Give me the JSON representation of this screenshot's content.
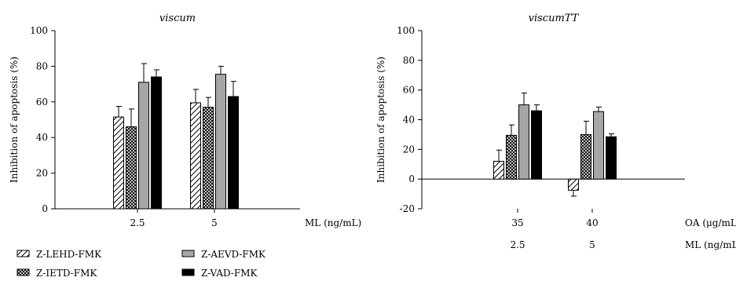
{
  "chart_data": [
    {
      "type": "bar",
      "title": "viscum",
      "ylabel": "Inhibition of apoptosis (%)",
      "ylim": [
        0,
        100
      ],
      "yticks": [
        0,
        20,
        40,
        60,
        80,
        100
      ],
      "x_rows": [
        {
          "name": "ML (ng/mL)",
          "labels": [
            "2.5",
            "5"
          ]
        }
      ],
      "series": [
        {
          "name": "Z-LEHD-FMK",
          "pattern": "hatch",
          "values": [
            51.5,
            59.5
          ],
          "errors": [
            6,
            7.5
          ]
        },
        {
          "name": "Z-IETD-FMK",
          "pattern": "crosshatch",
          "values": [
            46,
            57
          ],
          "errors": [
            10,
            5.5
          ]
        },
        {
          "name": "Z-AEVD-FMK",
          "pattern": "gray",
          "values": [
            71,
            75.5
          ],
          "errors": [
            10.5,
            4.5
          ]
        },
        {
          "name": "Z-VAD-FMK",
          "pattern": "black",
          "values": [
            74,
            63
          ],
          "errors": [
            4,
            8.5
          ]
        }
      ]
    },
    {
      "type": "bar",
      "title": "viscumTT",
      "ylabel": "Inhibition of apoptosis (%)",
      "ylim": [
        -20,
        100
      ],
      "yticks": [
        -20,
        0,
        20,
        40,
        60,
        80,
        100
      ],
      "x_rows": [
        {
          "name": "OA (μg/mL)",
          "labels": [
            "35",
            "40"
          ]
        },
        {
          "name": "ML (ng/mL)",
          "labels": [
            "2.5",
            "5"
          ]
        }
      ],
      "series": [
        {
          "name": "Z-LEHD-FMK",
          "pattern": "hatch",
          "values": [
            12,
            -7.5
          ],
          "errors": [
            7.5,
            4
          ]
        },
        {
          "name": "Z-IETD-FMK",
          "pattern": "crosshatch",
          "values": [
            29.5,
            30
          ],
          "errors": [
            7,
            9
          ]
        },
        {
          "name": "Z-AEVD-FMK",
          "pattern": "gray",
          "values": [
            50,
            45.5
          ],
          "errors": [
            8,
            3
          ]
        },
        {
          "name": "Z-VAD-FMK",
          "pattern": "black",
          "values": [
            46,
            28.5
          ],
          "errors": [
            4,
            2
          ]
        }
      ]
    }
  ],
  "legend": {
    "placement": "bottom-left",
    "items": [
      {
        "label": "Z-LEHD-FMK",
        "pattern": "hatch"
      },
      {
        "label": "Z-AEVD-FMK",
        "pattern": "gray"
      },
      {
        "label": "Z-IETD-FMK",
        "pattern": "crosshatch"
      },
      {
        "label": "Z-VAD-FMK",
        "pattern": "black"
      }
    ]
  },
  "colors": {
    "gray": "#a6a6a6",
    "black": "#000000",
    "stroke": "#000000"
  }
}
